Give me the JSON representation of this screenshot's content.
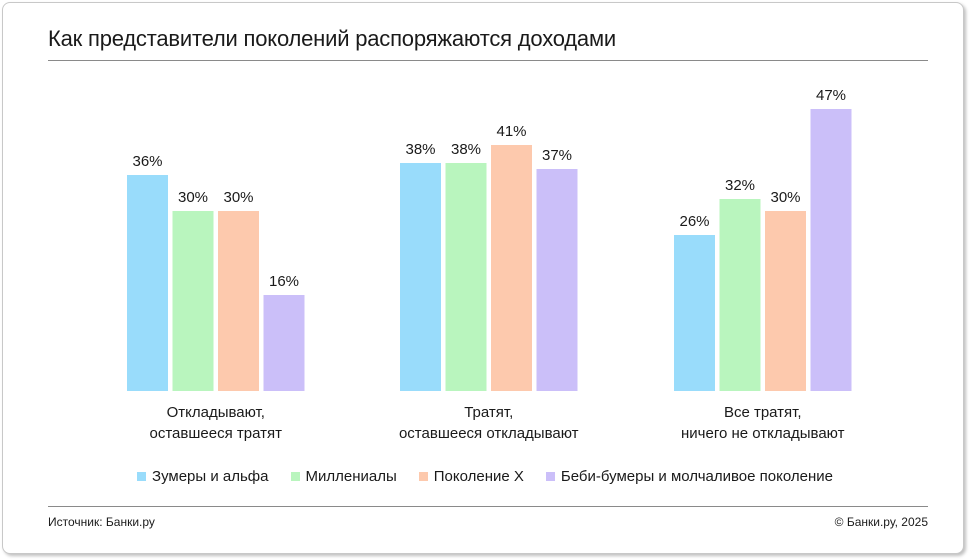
{
  "title": "Как представители поколений распоряжаются доходами",
  "footer": {
    "source": "Источник: Банки.ру",
    "copyright": "© Банки.ру, 2025"
  },
  "chart_data": {
    "type": "bar",
    "categories": [
      [
        "Откладывают,",
        "оставшееся тратят"
      ],
      [
        "Тратят,",
        "оставшееся откладывают"
      ],
      [
        "Все тратят,",
        "ничего не откладывают"
      ]
    ],
    "series": [
      {
        "name": "Зумеры и альфа",
        "color": "#99dcfb",
        "values": [
          36,
          38,
          26
        ]
      },
      {
        "name": "Миллениалы",
        "color": "#b9f5be",
        "values": [
          30,
          38,
          32
        ]
      },
      {
        "name": "Поколение X",
        "color": "#fdc9ad",
        "values": [
          30,
          41,
          30
        ]
      },
      {
        "name": "Беби-бумеры и молчаливое поколение",
        "color": "#cbbff9",
        "values": [
          16,
          37,
          47
        ]
      }
    ],
    "value_suffix": "%",
    "ylim": [
      0,
      50
    ],
    "legend_position": "bottom",
    "grid": false
  }
}
